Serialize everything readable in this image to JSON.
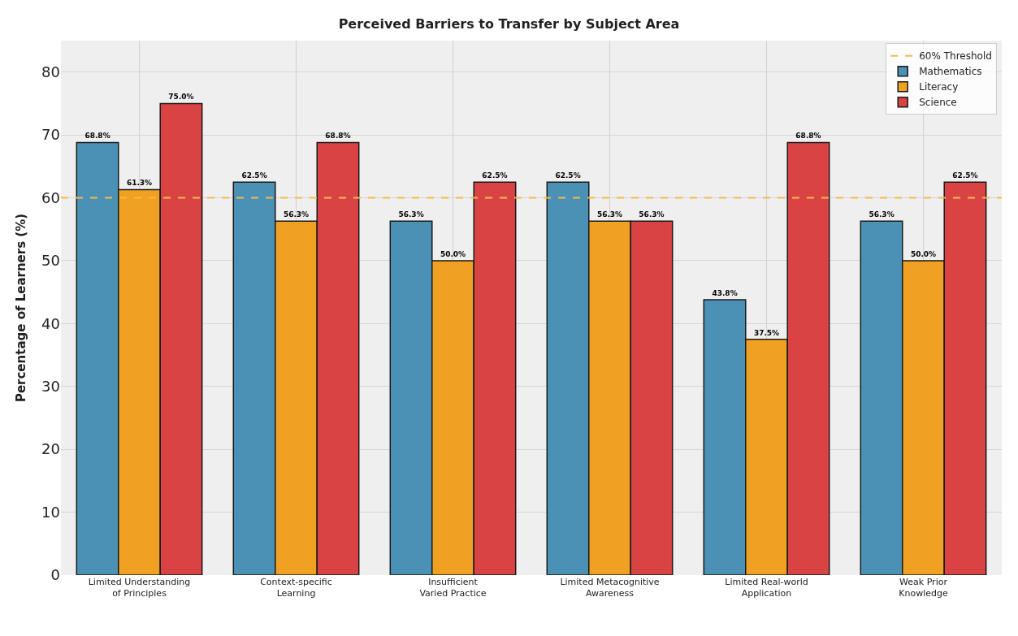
{
  "chart_data": {
    "type": "bar",
    "title": "Perceived Barriers to Transfer by Subject Area",
    "ylabel": "Percentage of Learners (%)",
    "categories": [
      "Limited Understanding\nof Principles",
      "Context-specific\nLearning",
      "Insufficient\nVaried Practice",
      "Limited Metacognitive\nAwareness",
      "Limited Real-world\nApplication",
      "Weak Prior\nKnowledge"
    ],
    "series": [
      {
        "name": "Mathematics",
        "color": "#4a91b5",
        "values": [
          68.8,
          62.5,
          56.3,
          62.5,
          43.8,
          56.3
        ],
        "value_labels": [
          "68.8%",
          "62.5%",
          "56.3%",
          "62.5%",
          "43.8%",
          "56.3%"
        ]
      },
      {
        "name": "Literacy",
        "color": "#f0a122",
        "values": [
          61.3,
          56.3,
          50.0,
          56.3,
          37.5,
          50.0
        ],
        "value_labels": [
          "61.3%",
          "56.3%",
          "50.0%",
          "56.3%",
          "37.5%",
          "50.0%"
        ]
      },
      {
        "name": "Science",
        "color": "#d94343",
        "values": [
          75.0,
          68.8,
          62.5,
          56.3,
          68.8,
          62.5
        ],
        "value_labels": [
          "75.0%",
          "68.8%",
          "62.5%",
          "56.3%",
          "68.8%",
          "62.5%"
        ]
      }
    ],
    "ref_lines": [
      {
        "axis": "y",
        "value": 60,
        "label": "60% Threshold",
        "color": "#f5b94d",
        "line_style": "dashed"
      }
    ],
    "ylim": [
      0,
      85
    ],
    "yticks": [
      0,
      10,
      20,
      30,
      40,
      50,
      60,
      70,
      80
    ],
    "grid": true,
    "legend": "top right"
  }
}
